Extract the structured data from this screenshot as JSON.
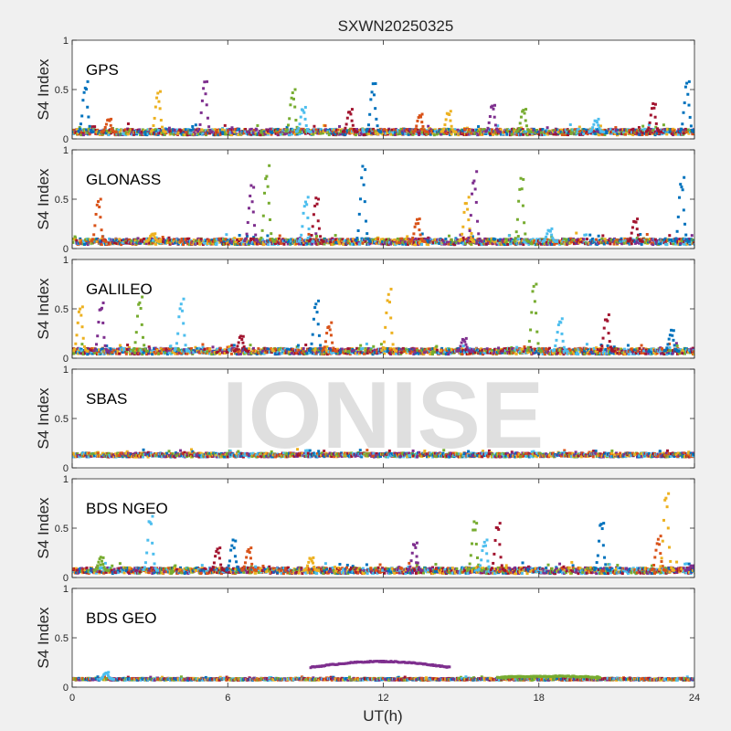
{
  "figure": {
    "title": "SXWN20250325",
    "xlabel": "UT(h)",
    "watermark": "IONISE"
  },
  "colors": {
    "background": "#f0f0f0",
    "axes_bg": "#ffffff",
    "series": [
      "#0072BD",
      "#D95319",
      "#EDB120",
      "#7E2F8E",
      "#77AC30",
      "#4DBEEE",
      "#A2142F"
    ],
    "watermark": "#d9d9d9"
  },
  "chart_data": [
    {
      "type": "scatter",
      "panel_label": "GPS",
      "ylabel": "S4 Index",
      "xlim": [
        0,
        24
      ],
      "ylim": [
        0,
        1
      ],
      "xticks": [
        0,
        6,
        12,
        18,
        24
      ],
      "yticks": [
        0,
        0.5,
        1
      ],
      "baseline": 0.07,
      "noise": 0.03,
      "spikes": [
        [
          0.6,
          0.58
        ],
        [
          1.5,
          0.2
        ],
        [
          3.4,
          0.48
        ],
        [
          5.2,
          0.58
        ],
        [
          8.6,
          0.5
        ],
        [
          9.0,
          0.32
        ],
        [
          10.8,
          0.3
        ],
        [
          11.7,
          0.56
        ],
        [
          13.5,
          0.25
        ],
        [
          14.6,
          0.28
        ],
        [
          16.3,
          0.34
        ],
        [
          17.5,
          0.3
        ],
        [
          20.3,
          0.2
        ],
        [
          22.5,
          0.35
        ],
        [
          23.8,
          0.58
        ]
      ]
    },
    {
      "type": "scatter",
      "panel_label": "GLONASS",
      "ylabel": "S4 Index",
      "xlim": [
        0,
        24
      ],
      "ylim": [
        0,
        1
      ],
      "xticks": [
        0,
        6,
        12,
        18,
        24
      ],
      "yticks": [
        0,
        0.5,
        1
      ],
      "baseline": 0.07,
      "noise": 0.03,
      "spikes": [
        [
          1.1,
          0.5
        ],
        [
          3.2,
          0.15
        ],
        [
          7.0,
          0.62
        ],
        [
          7.6,
          0.84
        ],
        [
          9.1,
          0.52
        ],
        [
          9.5,
          0.5
        ],
        [
          11.3,
          0.8
        ],
        [
          13.4,
          0.3
        ],
        [
          15.3,
          0.52
        ],
        [
          15.6,
          0.78
        ],
        [
          17.4,
          0.7
        ],
        [
          18.5,
          0.2
        ],
        [
          21.8,
          0.3
        ],
        [
          23.6,
          0.72
        ]
      ]
    },
    {
      "type": "scatter",
      "panel_label": "GALILEO",
      "ylabel": "S4 Index",
      "xlim": [
        0,
        24
      ],
      "ylim": [
        0,
        1
      ],
      "xticks": [
        0,
        6,
        12,
        18,
        24
      ],
      "yticks": [
        0,
        0.5,
        1
      ],
      "baseline": 0.07,
      "noise": 0.03,
      "spikes": [
        [
          0.4,
          0.52
        ],
        [
          1.2,
          0.56
        ],
        [
          2.7,
          0.62
        ],
        [
          4.3,
          0.6
        ],
        [
          6.6,
          0.22
        ],
        [
          9.5,
          0.58
        ],
        [
          10.0,
          0.36
        ],
        [
          12.3,
          0.7
        ],
        [
          15.2,
          0.2
        ],
        [
          17.9,
          0.75
        ],
        [
          18.9,
          0.4
        ],
        [
          20.7,
          0.44
        ],
        [
          23.2,
          0.28
        ]
      ]
    },
    {
      "type": "scatter",
      "panel_label": "SBAS",
      "ylabel": "S4 Index",
      "xlim": [
        0,
        24
      ],
      "ylim": [
        0,
        1
      ],
      "xticks": [
        0,
        6,
        12,
        18,
        24
      ],
      "yticks": [
        0,
        0.5,
        1
      ],
      "baseline": 0.13,
      "noise": 0.02,
      "spikes": []
    },
    {
      "type": "scatter",
      "panel_label": "BDS NGEO",
      "ylabel": "S4 Index",
      "xlim": [
        0,
        24
      ],
      "ylim": [
        0,
        1
      ],
      "xticks": [
        0,
        6,
        12,
        18,
        24
      ],
      "yticks": [
        0,
        0.5,
        1
      ],
      "baseline": 0.07,
      "noise": 0.03,
      "spikes": [
        [
          1.2,
          0.2
        ],
        [
          3.1,
          0.62
        ],
        [
          5.7,
          0.3
        ],
        [
          6.3,
          0.37
        ],
        [
          6.9,
          0.3
        ],
        [
          9.3,
          0.2
        ],
        [
          13.3,
          0.35
        ],
        [
          15.6,
          0.55
        ],
        [
          16.0,
          0.38
        ],
        [
          16.5,
          0.55
        ],
        [
          20.5,
          0.55
        ],
        [
          22.7,
          0.42
        ],
        [
          23.0,
          0.85
        ],
        [
          24.0,
          0.12
        ]
      ]
    },
    {
      "type": "scatter",
      "panel_label": "BDS GEO",
      "ylabel": "S4 Index",
      "xlim": [
        0,
        24
      ],
      "ylim": [
        0,
        1
      ],
      "xticks": [
        0,
        6,
        12,
        18,
        24
      ],
      "yticks": [
        0,
        0.5,
        1
      ],
      "baseline": 0.08,
      "noise": 0.01,
      "spikes": [
        [
          1.4,
          0.15
        ]
      ],
      "arcs": [
        {
          "x0": 9.2,
          "x1": 14.6,
          "y0": 0.2,
          "peak": 0.26,
          "color_index": 3
        },
        {
          "x0": 16.4,
          "x1": 20.4,
          "y0": 0.1,
          "peak": 0.11,
          "color_index": 4
        }
      ]
    }
  ]
}
